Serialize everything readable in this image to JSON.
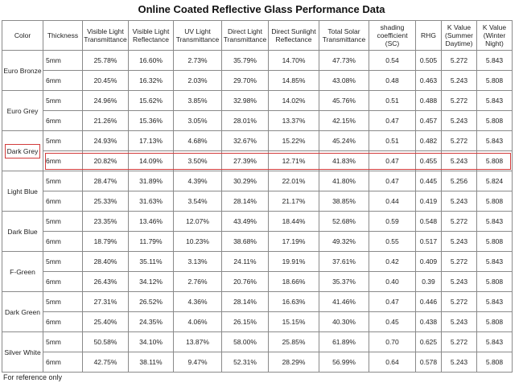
{
  "title": "Online Coated Reflective Glass Performance Data",
  "headers": [
    "Color",
    "Thickness",
    "Visible Light Transmittance",
    "Visible Light Reflectance",
    "UV Light Transmittance",
    "Direct Light Transmittance",
    "Direct Sunlight Reflectance",
    "Total Solar Transmittance",
    "shading coefficient (SC)",
    "RHG",
    "K Value (Summer Daytime)",
    "K Value (Winter Night)"
  ],
  "groups": [
    {
      "color": "Euro Bronze",
      "rows": [
        [
          "5mm",
          "25.78%",
          "16.60%",
          "2.73%",
          "35.79%",
          "14.70%",
          "47.73%",
          "0.54",
          "0.505",
          "5.272",
          "5.843"
        ],
        [
          "6mm",
          "20.45%",
          "16.32%",
          "2.03%",
          "29.70%",
          "14.85%",
          "43.08%",
          "0.48",
          "0.463",
          "5.243",
          "5.808"
        ]
      ]
    },
    {
      "color": "Euro Grey",
      "rows": [
        [
          "5mm",
          "24.96%",
          "15.62%",
          "3.85%",
          "32.98%",
          "14.02%",
          "45.76%",
          "0.51",
          "0.488",
          "5.272",
          "5.843"
        ],
        [
          "6mm",
          "21.26%",
          "15.36%",
          "3.05%",
          "28.01%",
          "13.37%",
          "42.15%",
          "0.47",
          "0.457",
          "5.243",
          "5.808"
        ]
      ]
    },
    {
      "color": "Dark Grey",
      "rows": [
        [
          "5mm",
          "24.93%",
          "17.13%",
          "4.68%",
          "32.67%",
          "15.22%",
          "45.24%",
          "0.51",
          "0.482",
          "5.272",
          "5.843"
        ],
        [
          "6mm",
          "20.82%",
          "14.09%",
          "3.50%",
          "27.39%",
          "12.71%",
          "41.83%",
          "0.47",
          "0.455",
          "5.243",
          "5.808"
        ]
      ]
    },
    {
      "color": "Light Blue",
      "rows": [
        [
          "5mm",
          "28.47%",
          "31.89%",
          "4.39%",
          "30.29%",
          "22.01%",
          "41.80%",
          "0.47",
          "0.445",
          "5.256",
          "5.824"
        ],
        [
          "6mm",
          "25.33%",
          "31.63%",
          "3.54%",
          "28.14%",
          "21.17%",
          "38.85%",
          "0.44",
          "0.419",
          "5.243",
          "5.808"
        ]
      ]
    },
    {
      "color": "Dark Blue",
      "rows": [
        [
          "5mm",
          "23.35%",
          "13.46%",
          "12.07%",
          "43.49%",
          "18.44%",
          "52.68%",
          "0.59",
          "0.548",
          "5.272",
          "5.843"
        ],
        [
          "6mm",
          "18.79%",
          "11.79%",
          "10.23%",
          "38.68%",
          "17.19%",
          "49.32%",
          "0.55",
          "0.517",
          "5.243",
          "5.808"
        ]
      ]
    },
    {
      "color": "F-Green",
      "rows": [
        [
          "5mm",
          "28.40%",
          "35.11%",
          "3.13%",
          "24.11%",
          "19.91%",
          "37.61%",
          "0.42",
          "0.409",
          "5.272",
          "5.843"
        ],
        [
          "6mm",
          "26.43%",
          "34.12%",
          "2.76%",
          "20.76%",
          "18.66%",
          "35.37%",
          "0.40",
          "0.39",
          "5.243",
          "5.808"
        ]
      ]
    },
    {
      "color": "Dark Green",
      "rows": [
        [
          "5mm",
          "27.31%",
          "26.52%",
          "4.36%",
          "28.14%",
          "16.63%",
          "41.46%",
          "0.47",
          "0.446",
          "5.272",
          "5.843"
        ],
        [
          "6mm",
          "25.40%",
          "24.35%",
          "4.06%",
          "26.15%",
          "15.15%",
          "40.30%",
          "0.45",
          "0.438",
          "5.243",
          "5.808"
        ]
      ]
    },
    {
      "color": "Silver White",
      "rows": [
        [
          "5mm",
          "50.58%",
          "34.10%",
          "13.87%",
          "58.00%",
          "25.85%",
          "61.89%",
          "0.70",
          "0.625",
          "5.272",
          "5.843"
        ],
        [
          "6mm",
          "42.75%",
          "38.11%",
          "9.47%",
          "52.31%",
          "28.29%",
          "56.99%",
          "0.64",
          "0.578",
          "5.243",
          "5.808"
        ]
      ]
    }
  ],
  "highlight": {
    "color": "Dark Grey",
    "row": "6mm",
    "border_color": "#d23c3c"
  },
  "footnote": "For reference only"
}
